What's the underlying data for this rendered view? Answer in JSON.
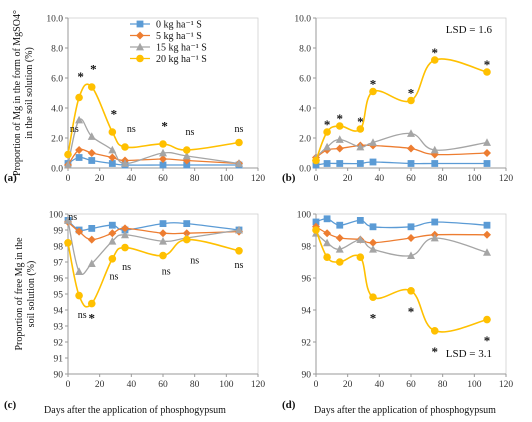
{
  "figure": {
    "ylabel_top": "Proportion of Mg in the form of MgSO4° in the soil solution (%)",
    "ylabel_bottom": "Proportion of free Mg in the soil solution (%)",
    "xlabel": "Days after the application of phosphogypsum"
  },
  "legend": [
    {
      "name": "0 kg ha⁻¹ S",
      "color": "#5b9bd5",
      "marker": "square"
    },
    {
      "name": "5 kg ha⁻¹ S",
      "color": "#ed7d31",
      "marker": "diamond"
    },
    {
      "name": "15 kg ha⁻¹ S",
      "color": "#a5a5a5",
      "marker": "triangle"
    },
    {
      "name": "20 kg ha⁻¹ S",
      "color": "#ffc000",
      "marker": "circle"
    }
  ],
  "chart_data": [
    {
      "type": "line",
      "panel": "(a)",
      "x": [
        0,
        7,
        15,
        28,
        36,
        60,
        75,
        108
      ],
      "xlim": [
        0,
        120
      ],
      "xticks": [
        0,
        20,
        40,
        60,
        80,
        100,
        120
      ],
      "ylim": [
        0,
        10
      ],
      "yticks": [
        0.0,
        2.0,
        4.0,
        6.0,
        8.0,
        10.0
      ],
      "ytick_labels": [
        "0.0",
        "2.0",
        "4.0",
        "6.0",
        "8.0",
        "10.0"
      ],
      "series": [
        {
          "name": "0 kg ha⁻¹ S",
          "values": [
            0.3,
            0.7,
            0.5,
            0.3,
            0.2,
            0.2,
            0.2,
            0.2
          ]
        },
        {
          "name": "5 kg ha⁻¹ S",
          "values": [
            0.2,
            1.2,
            1.0,
            0.7,
            0.5,
            0.6,
            0.5,
            0.3
          ]
        },
        {
          "name": "15 kg ha⁻¹ S",
          "values": [
            0.2,
            3.2,
            2.1,
            1.2,
            0.3,
            1.0,
            0.8,
            0.3
          ]
        },
        {
          "name": "20 kg ha⁻¹ S",
          "values": [
            0.9,
            4.7,
            5.4,
            2.4,
            1.4,
            1.6,
            1.2,
            1.7
          ]
        }
      ],
      "annotations": [
        {
          "x": 4,
          "y": 2.6,
          "text": "ns"
        },
        {
          "x": 8,
          "y": 6.2,
          "text": "*"
        },
        {
          "x": 16,
          "y": 6.7,
          "text": "*"
        },
        {
          "x": 29,
          "y": 3.7,
          "text": "*"
        },
        {
          "x": 40,
          "y": 2.6,
          "text": "ns"
        },
        {
          "x": 61,
          "y": 2.9,
          "text": "*"
        },
        {
          "x": 77,
          "y": 2.4,
          "text": "ns"
        },
        {
          "x": 108,
          "y": 2.6,
          "text": "ns"
        }
      ],
      "lsd": ""
    },
    {
      "type": "line",
      "panel": "(b)",
      "x": [
        0,
        7,
        15,
        28,
        36,
        60,
        75,
        108
      ],
      "xlim": [
        0,
        120
      ],
      "xticks": [
        0,
        20,
        40,
        60,
        80,
        100,
        120
      ],
      "ylim": [
        0,
        10
      ],
      "yticks": [
        0.0,
        2.0,
        4.0,
        6.0,
        8.0,
        10.0
      ],
      "ytick_labels": [
        "0.0",
        "2.0",
        "4.0",
        "6.0",
        "8.0",
        "10.0"
      ],
      "series": [
        {
          "name": "0 kg ha⁻¹ S",
          "values": [
            0.2,
            0.3,
            0.3,
            0.3,
            0.4,
            0.3,
            0.3,
            0.3
          ]
        },
        {
          "name": "5 kg ha⁻¹ S",
          "values": [
            0.7,
            1.2,
            1.3,
            1.5,
            1.5,
            1.3,
            0.9,
            1.0
          ]
        },
        {
          "name": "15 kg ha⁻¹ S",
          "values": [
            0.7,
            1.4,
            1.9,
            1.4,
            1.7,
            2.3,
            1.2,
            1.7
          ]
        },
        {
          "name": "20 kg ha⁻¹ S",
          "values": [
            0.5,
            2.4,
            2.8,
            2.6,
            5.1,
            4.5,
            7.2,
            6.4
          ]
        }
      ],
      "annotations": [
        {
          "x": 7,
          "y": 3.0,
          "text": "*"
        },
        {
          "x": 15,
          "y": 3.4,
          "text": "*"
        },
        {
          "x": 28,
          "y": 3.2,
          "text": "*"
        },
        {
          "x": 36,
          "y": 5.7,
          "text": "*"
        },
        {
          "x": 60,
          "y": 5.1,
          "text": "*"
        },
        {
          "x": 75,
          "y": 7.8,
          "text": "*"
        },
        {
          "x": 108,
          "y": 7.0,
          "text": "*"
        }
      ],
      "lsd": "LSD = 1.6"
    },
    {
      "type": "line",
      "panel": "(c)",
      "x": [
        0,
        7,
        15,
        28,
        36,
        60,
        75,
        108
      ],
      "xlim": [
        0,
        120
      ],
      "xticks": [
        0,
        20,
        40,
        60,
        80,
        100,
        120
      ],
      "ylim": [
        90,
        100
      ],
      "yticks": [
        90,
        91,
        92,
        93,
        94,
        95,
        96,
        97,
        98,
        99,
        100
      ],
      "ytick_labels": [
        "90",
        "91",
        "92",
        "93",
        "94",
        "95",
        "96",
        "97",
        "98",
        "99",
        "100"
      ],
      "series": [
        {
          "name": "0 kg ha⁻¹ S",
          "values": [
            99.6,
            99.0,
            99.1,
            99.3,
            99.0,
            99.4,
            99.4,
            99.0
          ]
        },
        {
          "name": "5 kg ha⁻¹ S",
          "values": [
            99.5,
            98.9,
            98.4,
            98.8,
            99.1,
            98.8,
            98.8,
            98.9
          ]
        },
        {
          "name": "15 kg ha⁻¹ S",
          "values": [
            99.6,
            96.4,
            96.9,
            98.3,
            98.7,
            98.3,
            98.5,
            99.0
          ]
        },
        {
          "name": "20 kg ha⁻¹ S",
          "values": [
            98.2,
            94.9,
            94.4,
            97.2,
            97.9,
            97.4,
            98.4,
            97.7
          ]
        }
      ],
      "annotations": [
        {
          "x": 3,
          "y": 99.8,
          "text": "ns"
        },
        {
          "x": 9,
          "y": 93.7,
          "text": "ns"
        },
        {
          "x": 15,
          "y": 93.6,
          "text": "*"
        },
        {
          "x": 29,
          "y": 96.1,
          "text": "ns"
        },
        {
          "x": 37,
          "y": 96.7,
          "text": "ns"
        },
        {
          "x": 62,
          "y": 96.4,
          "text": "ns"
        },
        {
          "x": 80,
          "y": 97.1,
          "text": "ns"
        },
        {
          "x": 108,
          "y": 96.8,
          "text": "ns"
        }
      ],
      "lsd": ""
    },
    {
      "type": "line",
      "panel": "(d)",
      "x": [
        0,
        7,
        15,
        28,
        36,
        60,
        75,
        108
      ],
      "xlim": [
        0,
        120
      ],
      "xticks": [
        0,
        20,
        40,
        60,
        80,
        100,
        120
      ],
      "ylim": [
        90,
        100
      ],
      "yticks": [
        90,
        92,
        94,
        96,
        98,
        100
      ],
      "ytick_labels": [
        "90",
        "92",
        "94",
        "96",
        "98",
        "100"
      ],
      "series": [
        {
          "name": "0 kg ha⁻¹ S",
          "values": [
            99.5,
            99.7,
            99.3,
            99.6,
            99.2,
            99.2,
            99.5,
            99.3
          ]
        },
        {
          "name": "5 kg ha⁻¹ S",
          "values": [
            99.2,
            98.8,
            98.5,
            98.4,
            98.2,
            98.5,
            98.7,
            98.7
          ]
        },
        {
          "name": "15 kg ha⁻¹ S",
          "values": [
            98.8,
            98.2,
            97.8,
            98.4,
            97.8,
            97.4,
            98.5,
            97.6
          ]
        },
        {
          "name": "20 kg ha⁻¹ S",
          "values": [
            99.0,
            97.3,
            97.0,
            97.3,
            94.8,
            95.2,
            92.7,
            93.4
          ]
        }
      ],
      "annotations": [
        {
          "x": 36,
          "y": 93.6,
          "text": "*"
        },
        {
          "x": 60,
          "y": 94.0,
          "text": "*"
        },
        {
          "x": 75,
          "y": 91.5,
          "text": "*"
        },
        {
          "x": 108,
          "y": 92.2,
          "text": "*"
        }
      ],
      "lsd": "LSD = 3.1"
    }
  ]
}
